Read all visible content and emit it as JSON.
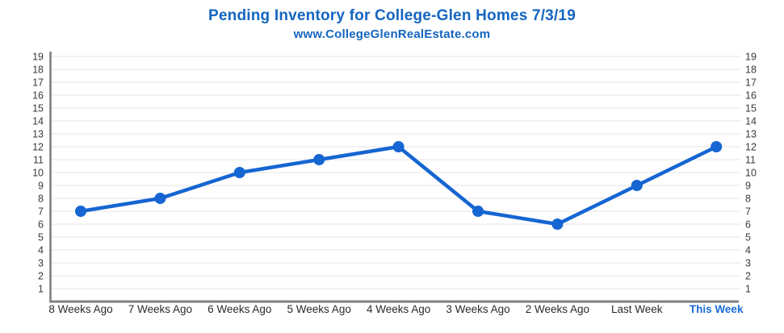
{
  "header": {
    "title": "Pending Inventory for College-Glen Homes 7/3/19",
    "subtitle": "www.CollegeGlenRealEstate.com",
    "title_color": "#1565c0"
  },
  "chart_data": {
    "type": "line",
    "title": "Pending Inventory for College-Glen Homes 7/3/19",
    "subtitle": "www.CollegeGlenRealEstate.com",
    "categories": [
      "8 Weeks Ago",
      "7 Weeks Ago",
      "6 Weeks Ago",
      "5 Weeks Ago",
      "4 Weeks Ago",
      "3 Weeks Ago",
      "2 Weeks Ago",
      "Last Week",
      "This Week"
    ],
    "values": [
      7,
      8,
      10,
      11,
      12,
      7,
      6,
      9,
      12
    ],
    "xlabel": "",
    "ylabel": "",
    "ylim": [
      0,
      19
    ],
    "y_ticks": {
      "min": 1,
      "max": 19,
      "step": 1
    },
    "y_axis_sides": [
      "left",
      "right"
    ],
    "grid": true,
    "legend": "none",
    "highlighted_category": "This Week",
    "colors": {
      "line": "#1565d2",
      "marker": "#1565d2",
      "gridline": "#ededed",
      "axis": "#808080",
      "y_tick_label": "#3a3a3a",
      "x_tick_label": "#2b2b2b",
      "highlight_label": "#1a6bdb"
    }
  }
}
